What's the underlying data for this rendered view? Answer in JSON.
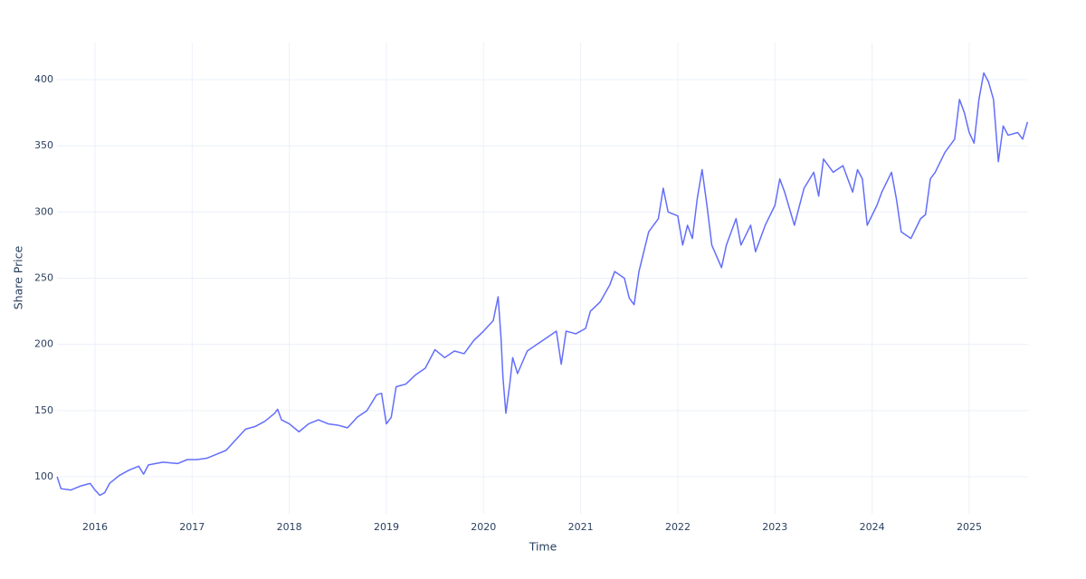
{
  "chart_data": {
    "type": "line",
    "x_label": "Time",
    "y_label": "Share Price",
    "x": [
      2015.61,
      2015.65,
      2015.75,
      2015.85,
      2015.95,
      2016.0,
      2016.05,
      2016.1,
      2016.15,
      2016.25,
      2016.35,
      2016.45,
      2016.5,
      2016.55,
      2016.7,
      2016.85,
      2016.95,
      2017.05,
      2017.15,
      2017.25,
      2017.35,
      2017.45,
      2017.55,
      2017.65,
      2017.75,
      2017.85,
      2017.88,
      2017.92,
      2018.0,
      2018.1,
      2018.2,
      2018.3,
      2018.4,
      2018.5,
      2018.6,
      2018.7,
      2018.8,
      2018.9,
      2018.95,
      2019.0,
      2019.05,
      2019.1,
      2019.2,
      2019.3,
      2019.4,
      2019.5,
      2019.6,
      2019.7,
      2019.8,
      2019.9,
      2020.0,
      2020.1,
      2020.15,
      2020.18,
      2020.2,
      2020.23,
      2020.27,
      2020.3,
      2020.35,
      2020.45,
      2020.55,
      2020.65,
      2020.75,
      2020.8,
      2020.85,
      2020.95,
      2021.05,
      2021.1,
      2021.2,
      2021.3,
      2021.35,
      2021.45,
      2021.5,
      2021.55,
      2021.6,
      2021.7,
      2021.8,
      2021.85,
      2021.9,
      2022.0,
      2022.05,
      2022.1,
      2022.15,
      2022.2,
      2022.25,
      2022.3,
      2022.35,
      2022.45,
      2022.5,
      2022.6,
      2022.65,
      2022.75,
      2022.8,
      2022.9,
      2023.0,
      2023.05,
      2023.1,
      2023.2,
      2023.3,
      2023.4,
      2023.45,
      2023.5,
      2023.6,
      2023.7,
      2023.8,
      2023.85,
      2023.9,
      2023.95,
      2024.05,
      2024.1,
      2024.2,
      2024.25,
      2024.3,
      2024.4,
      2024.5,
      2024.55,
      2024.6,
      2024.65,
      2024.75,
      2024.85,
      2024.9,
      2024.95,
      2025.0,
      2025.05,
      2025.1,
      2025.15,
      2025.2,
      2025.25,
      2025.3,
      2025.35,
      2025.4,
      2025.5,
      2025.55,
      2025.6
    ],
    "values": [
      100,
      91,
      90,
      93,
      95,
      90,
      86,
      88,
      95,
      101,
      105,
      108,
      102,
      109,
      111,
      110,
      113,
      113,
      114,
      117,
      120,
      128,
      136,
      138,
      142,
      148,
      151,
      143,
      140,
      134,
      140,
      143,
      140,
      139,
      137,
      145,
      150,
      162,
      163,
      140,
      145,
      168,
      170,
      177,
      182,
      196,
      190,
      195,
      193,
      203,
      210,
      218,
      236,
      205,
      175,
      148,
      170,
      190,
      178,
      195,
      200,
      205,
      210,
      185,
      210,
      208,
      212,
      225,
      232,
      245,
      255,
      250,
      235,
      230,
      255,
      285,
      295,
      318,
      300,
      297,
      275,
      290,
      280,
      310,
      332,
      305,
      275,
      258,
      275,
      295,
      275,
      290,
      270,
      290,
      305,
      325,
      315,
      290,
      318,
      330,
      312,
      340,
      330,
      335,
      315,
      332,
      325,
      290,
      305,
      315,
      330,
      310,
      285,
      280,
      295,
      298,
      325,
      330,
      345,
      355,
      385,
      375,
      360,
      352,
      385,
      405,
      398,
      385,
      338,
      365,
      358,
      360,
      355,
      368
    ],
    "color": "#636efa",
    "xlim": [
      2015.609,
      2025.606
    ],
    "xticks": [
      2016,
      2017,
      2018,
      2019,
      2020,
      2021,
      2022,
      2023,
      2024,
      2025
    ],
    "ylim": [
      72,
      428
    ],
    "yticks": [
      100,
      150,
      200,
      250,
      300,
      350,
      400
    ],
    "grid": true
  }
}
